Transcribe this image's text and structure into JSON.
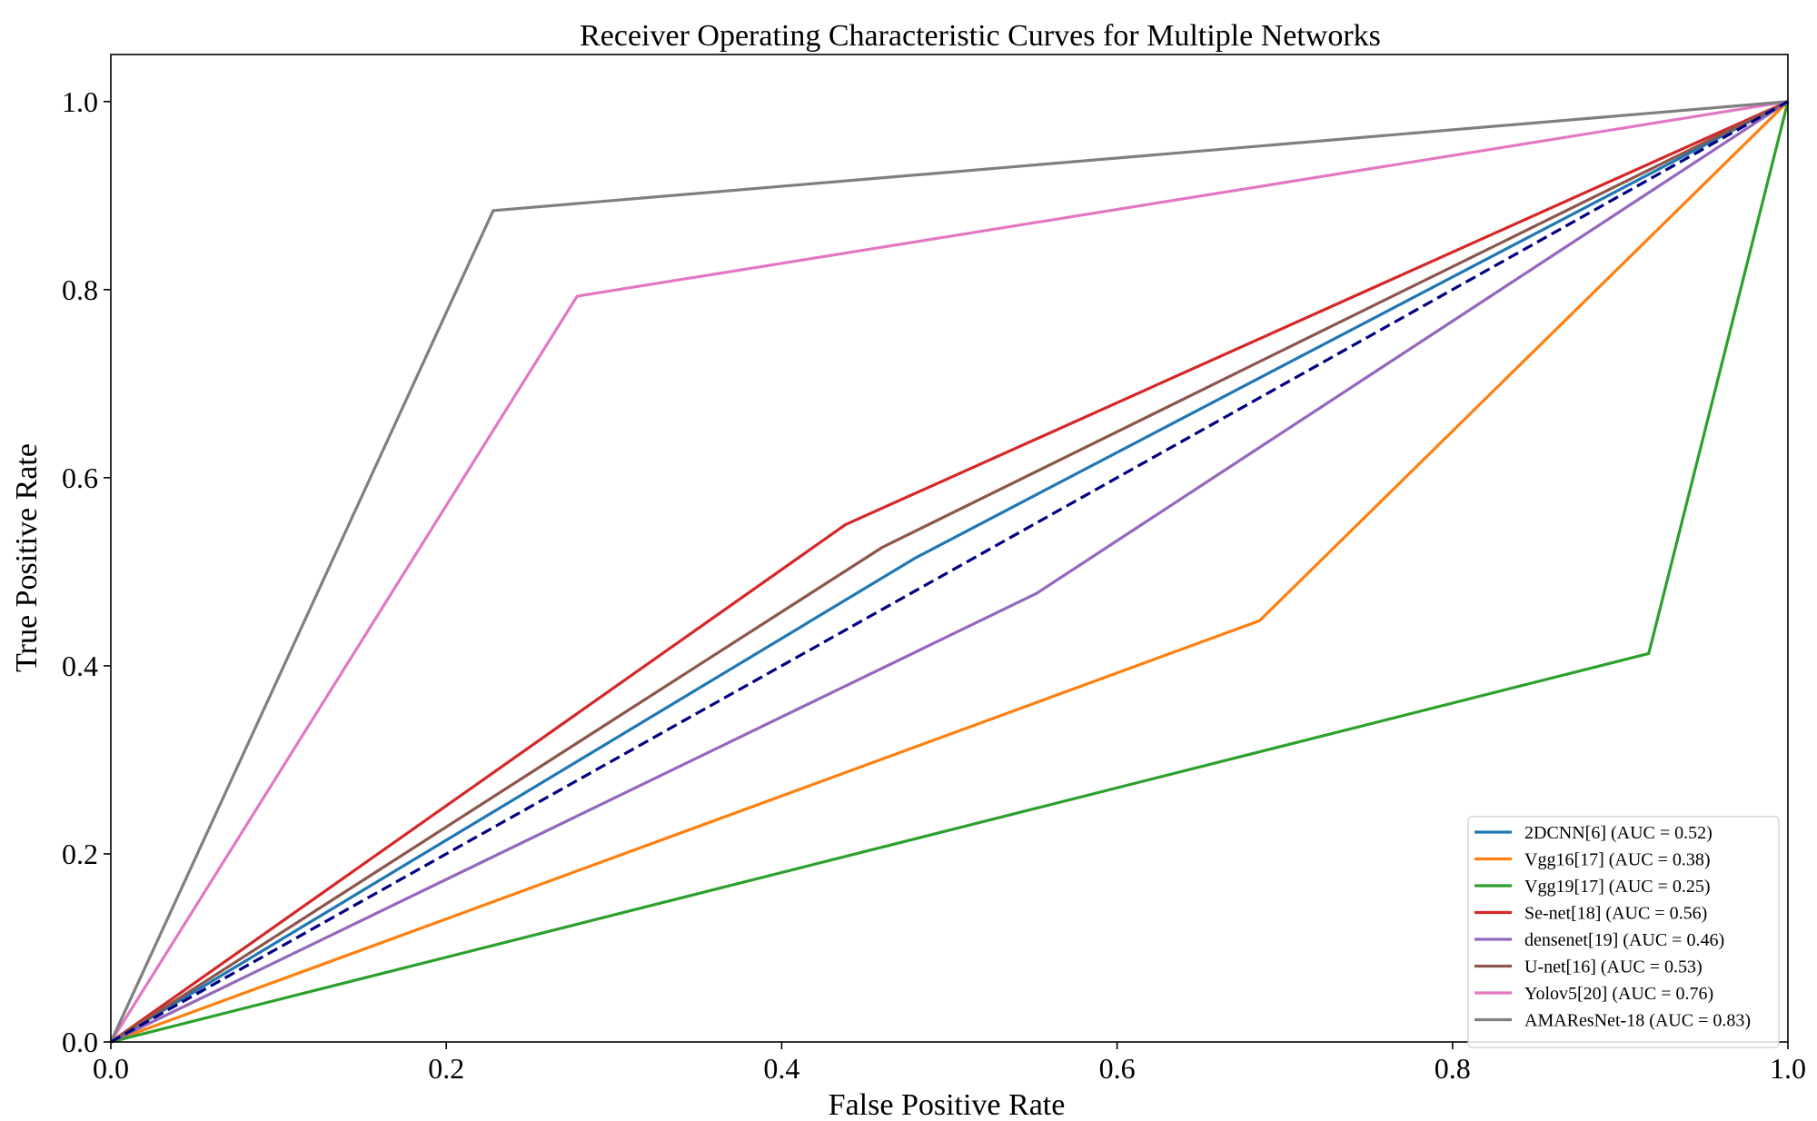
{
  "chart_data": {
    "type": "line",
    "title": "Receiver Operating Characteristic Curves for Multiple Networks",
    "xlabel": "False Positive Rate",
    "ylabel": "True Positive Rate",
    "xlim": [
      0.0,
      1.0
    ],
    "ylim": [
      0.0,
      1.05
    ],
    "xticks": [
      "0.0",
      "0.2",
      "0.4",
      "0.6",
      "0.8",
      "1.0"
    ],
    "yticks": [
      "0.0",
      "0.2",
      "0.4",
      "0.6",
      "0.8",
      "1.0"
    ],
    "grid": false,
    "legend_position": "bottom-right",
    "diagonal": {
      "x": [
        0,
        1
      ],
      "y": [
        0,
        1
      ],
      "color": "#000080",
      "style": "dashed"
    },
    "series": [
      {
        "name": "2DCNN[6] (AUC = 0.52)",
        "color": "#1f77b4",
        "x": [
          0,
          0.48,
          1
        ],
        "y": [
          0,
          0.515,
          1
        ]
      },
      {
        "name": "Vgg16[17] (AUC = 0.38)",
        "color": "#ff7f0e",
        "x": [
          0,
          0.685,
          1
        ],
        "y": [
          0,
          0.448,
          1
        ]
      },
      {
        "name": "Vgg19[17] (AUC = 0.25)",
        "color": "#2ca02c",
        "x": [
          0,
          0.917,
          1
        ],
        "y": [
          0,
          0.413,
          1
        ]
      },
      {
        "name": "Se-net[18] (AUC = 0.56)",
        "color": "#d62728",
        "x": [
          0,
          0.438,
          1
        ],
        "y": [
          0,
          0.55,
          1
        ]
      },
      {
        "name": "densenet[19] (AUC = 0.46)",
        "color": "#9467bd",
        "x": [
          0,
          0.552,
          1
        ],
        "y": [
          0,
          0.477,
          1
        ]
      },
      {
        "name": "U-net[16] (AUC = 0.53)",
        "color": "#8c564b",
        "x": [
          0,
          0.46,
          1
        ],
        "y": [
          0,
          0.526,
          1
        ]
      },
      {
        "name": "Yolov5[20] (AUC = 0.76)",
        "color": "#e377c2",
        "x": [
          0,
          0.278,
          1
        ],
        "y": [
          0,
          0.793,
          1
        ]
      },
      {
        "name": "AMAResNet-18 (AUC = 0.83)",
        "color": "#7f7f7f",
        "x": [
          0,
          0.228,
          1
        ],
        "y": [
          0,
          0.884,
          1
        ]
      }
    ]
  }
}
